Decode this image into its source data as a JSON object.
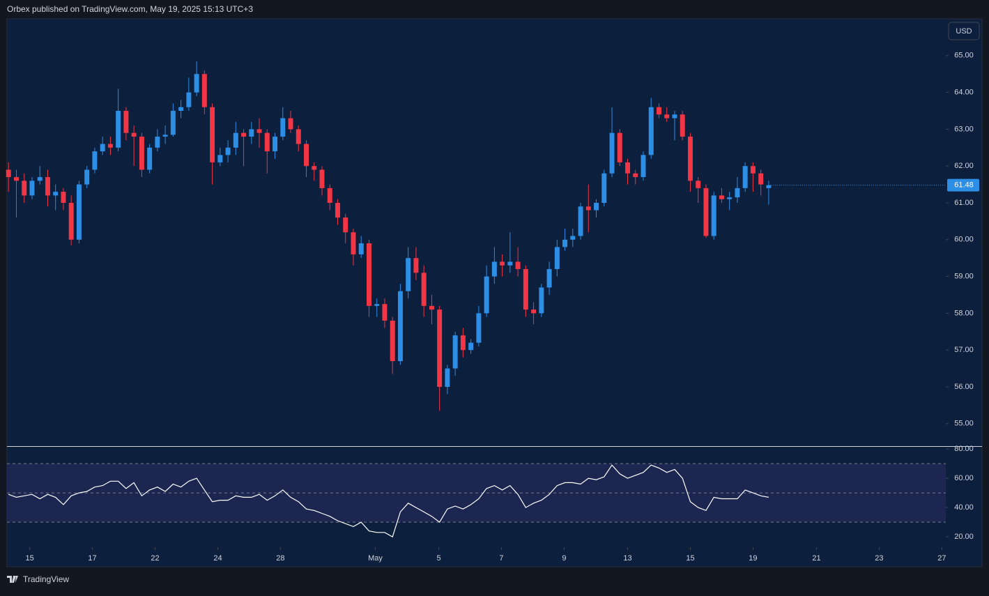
{
  "header": {
    "attribution": "Orbex published on TradingView.com, May 19, 2025 15:13 UTC+3",
    "currency": "USD",
    "brand": "TradingView"
  },
  "chart_data": [
    {
      "type": "candlestick",
      "up_color": "#2d8ee6",
      "down_color": "#f23645",
      "xlim": [
        -0.2,
        119.6
      ],
      "ylim": [
        54.39,
        66.0
      ],
      "yticks": [
        {
          "value": 55,
          "label": "55.00"
        },
        {
          "value": 56,
          "label": "56.00"
        },
        {
          "value": 57,
          "label": "57.00"
        },
        {
          "value": 58,
          "label": "58.00"
        },
        {
          "value": 59,
          "label": "59.00"
        },
        {
          "value": 60,
          "label": "60.00"
        },
        {
          "value": 61,
          "label": "61.00"
        },
        {
          "value": 62,
          "label": "62.00"
        },
        {
          "value": 63,
          "label": "63.00"
        },
        {
          "value": 64,
          "label": "64.00"
        },
        {
          "value": 65,
          "label": "65.00"
        }
      ],
      "candles": [
        [
          61.9,
          62.1,
          61.3,
          61.7
        ],
        [
          61.7,
          61.9,
          60.6,
          61.6
        ],
        [
          61.6,
          61.8,
          61.0,
          61.2
        ],
        [
          61.2,
          61.7,
          61.1,
          61.6
        ],
        [
          61.6,
          62.0,
          61.5,
          61.7
        ],
        [
          61.7,
          61.9,
          60.9,
          61.2
        ],
        [
          61.2,
          61.5,
          60.8,
          61.3
        ],
        [
          61.3,
          61.4,
          60.8,
          61.0
        ],
        [
          61.0,
          61.2,
          59.85,
          60.0
        ],
        [
          60.0,
          61.6,
          59.9,
          61.5
        ],
        [
          61.5,
          62.0,
          61.4,
          61.9
        ],
        [
          61.9,
          62.5,
          61.8,
          62.4
        ],
        [
          62.4,
          62.8,
          62.3,
          62.6
        ],
        [
          62.6,
          62.8,
          62.3,
          62.5
        ],
        [
          62.5,
          64.1,
          62.4,
          63.5
        ],
        [
          63.5,
          63.6,
          62.7,
          62.9
        ],
        [
          62.9,
          63.1,
          62.0,
          62.8
        ],
        [
          62.8,
          62.9,
          61.7,
          61.9
        ],
        [
          61.9,
          62.6,
          61.8,
          62.5
        ],
        [
          62.5,
          63.0,
          62.4,
          62.8
        ],
        [
          62.8,
          63.1,
          62.6,
          62.85
        ],
        [
          62.85,
          63.7,
          62.8,
          63.5
        ],
        [
          63.5,
          63.8,
          63.3,
          63.6
        ],
        [
          63.6,
          64.4,
          63.5,
          64.0
        ],
        [
          64.0,
          64.85,
          63.9,
          64.5
        ],
        [
          64.5,
          64.6,
          63.4,
          63.6
        ],
        [
          63.6,
          63.7,
          61.5,
          62.1
        ],
        [
          62.1,
          62.5,
          62.0,
          62.3
        ],
        [
          62.3,
          62.7,
          62.1,
          62.5
        ],
        [
          62.5,
          63.2,
          62.3,
          62.9
        ],
        [
          62.9,
          63.0,
          62.0,
          62.8
        ],
        [
          62.8,
          63.2,
          62.6,
          63.0
        ],
        [
          63.0,
          63.3,
          62.5,
          62.9
        ],
        [
          62.9,
          63.0,
          61.8,
          62.4
        ],
        [
          62.4,
          62.9,
          62.2,
          62.8
        ],
        [
          62.8,
          63.6,
          62.7,
          63.3
        ],
        [
          63.3,
          63.5,
          62.9,
          63.0
        ],
        [
          63.0,
          63.1,
          62.4,
          62.6
        ],
        [
          62.6,
          62.7,
          61.7,
          62.0
        ],
        [
          62.0,
          62.1,
          61.6,
          61.9
        ],
        [
          61.9,
          62.0,
          61.2,
          61.4
        ],
        [
          61.4,
          61.5,
          60.8,
          61.0
        ],
        [
          61.0,
          61.1,
          60.4,
          60.6
        ],
        [
          60.6,
          60.7,
          59.9,
          60.2
        ],
        [
          60.2,
          60.3,
          59.3,
          59.6
        ],
        [
          59.6,
          60.1,
          59.5,
          59.9
        ],
        [
          59.9,
          60.0,
          57.9,
          58.2
        ],
        [
          58.2,
          58.4,
          57.9,
          58.25
        ],
        [
          58.25,
          58.4,
          57.6,
          57.8
        ],
        [
          57.8,
          57.9,
          56.35,
          56.7
        ],
        [
          56.7,
          58.8,
          56.6,
          58.6
        ],
        [
          58.6,
          59.8,
          58.4,
          59.5
        ],
        [
          59.5,
          59.8,
          58.9,
          59.1
        ],
        [
          59.1,
          59.3,
          57.9,
          58.2
        ],
        [
          58.2,
          58.5,
          57.7,
          58.1
        ],
        [
          58.1,
          58.2,
          55.35,
          56.0
        ],
        [
          56.0,
          56.6,
          55.8,
          56.5
        ],
        [
          56.5,
          57.5,
          56.3,
          57.4
        ],
        [
          57.4,
          57.6,
          56.8,
          57.0
        ],
        [
          57.0,
          57.3,
          56.9,
          57.2
        ],
        [
          57.2,
          58.2,
          57.1,
          58.0
        ],
        [
          58.0,
          59.3,
          57.9,
          59.0
        ],
        [
          59.0,
          59.8,
          58.8,
          59.4
        ],
        [
          59.4,
          59.6,
          59.0,
          59.3
        ],
        [
          59.3,
          60.2,
          59.1,
          59.4
        ],
        [
          59.4,
          59.8,
          59.0,
          59.2
        ],
        [
          59.2,
          59.3,
          57.9,
          58.1
        ],
        [
          58.1,
          58.3,
          57.7,
          58.0
        ],
        [
          58.0,
          58.8,
          57.9,
          58.7
        ],
        [
          58.7,
          59.4,
          58.5,
          59.2
        ],
        [
          59.2,
          60.0,
          59.0,
          59.8
        ],
        [
          59.8,
          60.3,
          59.7,
          60.0
        ],
        [
          60.0,
          60.3,
          59.8,
          60.1
        ],
        [
          60.1,
          61.0,
          60.0,
          60.9
        ],
        [
          60.9,
          61.5,
          60.2,
          60.8
        ],
        [
          60.8,
          61.1,
          60.6,
          61.0
        ],
        [
          61.0,
          61.9,
          60.9,
          61.8
        ],
        [
          61.8,
          63.6,
          61.7,
          62.9
        ],
        [
          62.9,
          63.0,
          62.0,
          62.1
        ],
        [
          62.1,
          62.2,
          61.5,
          61.8
        ],
        [
          61.8,
          61.9,
          61.5,
          61.7
        ],
        [
          61.7,
          62.4,
          61.6,
          62.3
        ],
        [
          62.3,
          63.85,
          62.2,
          63.6
        ],
        [
          63.6,
          63.7,
          63.3,
          63.4
        ],
        [
          63.4,
          63.6,
          63.2,
          63.3
        ],
        [
          63.3,
          63.5,
          62.7,
          63.4
        ],
        [
          63.4,
          63.5,
          62.7,
          62.8
        ],
        [
          62.8,
          62.9,
          61.3,
          61.6
        ],
        [
          61.6,
          61.7,
          61.0,
          61.4
        ],
        [
          61.4,
          61.5,
          60.05,
          60.1
        ],
        [
          60.1,
          61.3,
          60.0,
          61.2
        ],
        [
          61.2,
          61.4,
          61.0,
          61.1
        ],
        [
          61.1,
          61.3,
          60.8,
          61.15
        ],
        [
          61.15,
          61.7,
          61.0,
          61.4
        ],
        [
          61.4,
          62.1,
          61.3,
          62.0
        ],
        [
          62.0,
          62.1,
          61.3,
          61.8
        ],
        [
          61.8,
          61.9,
          61.2,
          61.5
        ],
        [
          61.4,
          61.6,
          60.95,
          61.48
        ]
      ]
    },
    {
      "type": "line",
      "color": "#ffffff",
      "band_color": "#1c2650",
      "levels": [
        70,
        50,
        30
      ],
      "xlim": [
        -0.2,
        119.6
      ],
      "ylim": [
        12.9,
        81.5
      ],
      "yticks": [
        {
          "value": 20,
          "label": "20.00"
        },
        {
          "value": 40,
          "label": "40.00"
        },
        {
          "value": 60,
          "label": "60.00"
        },
        {
          "value": 80,
          "label": "80.00"
        }
      ],
      "xticks": [
        {
          "value": 2.7,
          "label": "15"
        },
        {
          "value": 10.7,
          "label": "17"
        },
        {
          "value": 18.7,
          "label": "22"
        },
        {
          "value": 26.7,
          "label": "24"
        },
        {
          "value": 34.7,
          "label": "28"
        },
        {
          "value": 46.8,
          "label": "May"
        },
        {
          "value": 54.9,
          "label": "5"
        },
        {
          "value": 62.9,
          "label": "7"
        },
        {
          "value": 70.9,
          "label": "9"
        },
        {
          "value": 79,
          "label": "13"
        },
        {
          "value": 87,
          "label": "15"
        },
        {
          "value": 95,
          "label": "19"
        },
        {
          "value": 103.1,
          "label": "21"
        },
        {
          "value": 111.1,
          "label": "23"
        },
        {
          "value": 119.1,
          "label": "27"
        }
      ],
      "values": [
        49,
        47,
        48,
        49,
        46,
        49,
        47,
        42,
        48,
        50,
        51,
        54,
        55,
        58,
        58,
        53,
        57,
        48,
        52,
        54,
        51,
        56,
        54,
        58,
        60,
        52,
        44,
        45,
        45,
        48,
        47,
        47,
        49,
        45,
        48,
        52,
        47,
        44,
        39,
        38,
        36,
        34,
        31,
        29,
        27,
        30,
        24,
        23,
        23,
        20,
        37,
        43,
        40,
        37,
        34,
        30,
        39,
        41,
        39,
        42,
        46,
        53,
        55,
        52,
        55,
        49,
        40,
        43,
        45,
        49,
        55,
        57,
        57,
        56,
        60,
        59,
        61,
        69,
        63,
        60,
        62,
        64,
        69,
        67,
        64,
        66,
        60,
        44,
        40,
        38,
        47,
        46,
        46,
        46,
        52,
        50,
        48,
        47
      ]
    }
  ]
}
